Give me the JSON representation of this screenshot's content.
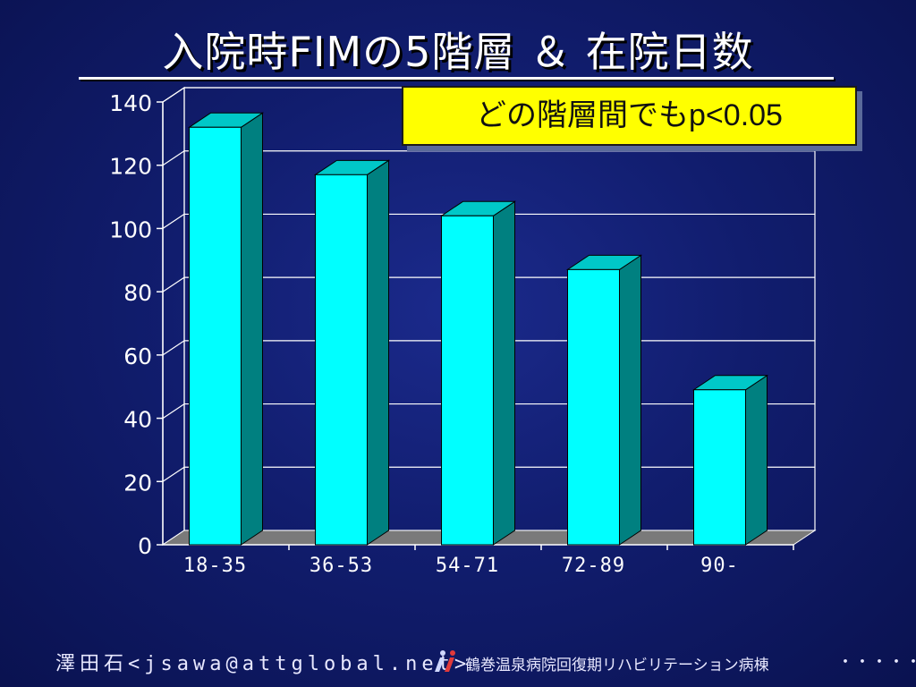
{
  "slide": {
    "title": "入院時FIMの5階層 ＆ 在院日数",
    "callout": "どの階層間でもp<0.05"
  },
  "footer": {
    "name": "澤田石<jsawa@attglobal.net>",
    "hospital": "鶴巻温泉病院回復期リハビリテーション病棟",
    "dots": "・・・・・・・",
    "logo_icon": "hospital-logo-icon"
  },
  "colors": {
    "bar_front": "#00ffff",
    "bar_side": "#008080",
    "bar_top": "#00c8c8",
    "floor": "#7a7a7a",
    "gridline": "#ffffff",
    "text": "#ffffff"
  },
  "chart_data": {
    "type": "bar",
    "title": "",
    "xlabel": "",
    "ylabel": "",
    "categories": [
      "18-35",
      "36-53",
      "54-71",
      "72-89",
      "90-"
    ],
    "values": [
      132,
      117,
      104,
      87,
      49
    ],
    "ylim": [
      0,
      140
    ],
    "yticks": [
      0,
      20,
      40,
      60,
      80,
      100,
      120,
      140
    ],
    "grid": true,
    "legend": "none",
    "style": "3d"
  }
}
